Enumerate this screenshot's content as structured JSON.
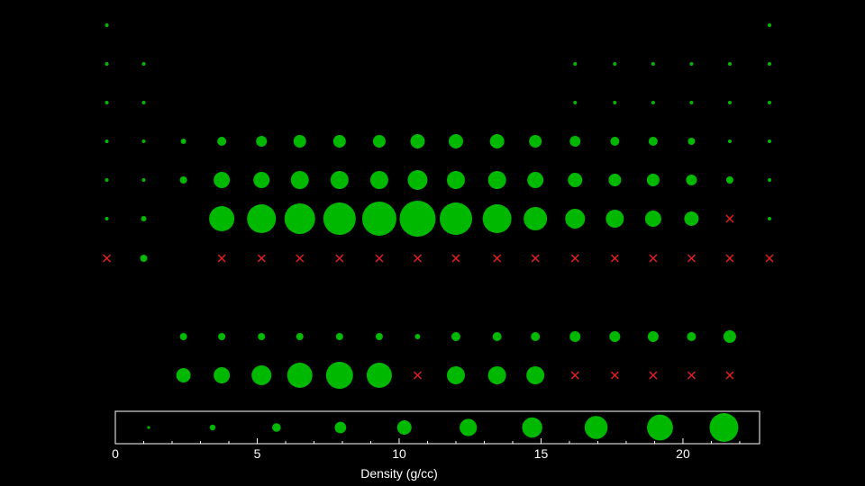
{
  "chart_data": {
    "type": "scatter",
    "xlabel": "Density (g/cc)",
    "xlim": [
      0,
      22.7
    ],
    "xticks": [
      {
        "value": 0,
        "label": "0"
      },
      {
        "value": 5,
        "label": "5"
      },
      {
        "value": 10,
        "label": "10"
      },
      {
        "value": 15,
        "label": "15"
      },
      {
        "value": 20,
        "label": "20"
      }
    ],
    "minor_tick_step": 1,
    "colors": {
      "circle": "#00b800",
      "cross": "#e02020",
      "legend_box": "#ffffff",
      "axis": "#ffffff"
    },
    "columns": [
      -0.3,
      1.0,
      2.4,
      3.75,
      5.15,
      6.5,
      7.9,
      9.3,
      10.65,
      12.0,
      13.45,
      14.8,
      16.2,
      17.6,
      18.95,
      20.3,
      21.65,
      23.05
    ],
    "rows": [
      {
        "points": [
          [
            0,
            "c",
            1
          ],
          [
            17,
            "c",
            1
          ]
        ]
      },
      {
        "points": [
          [
            0,
            "c",
            1
          ],
          [
            1,
            "c",
            1
          ],
          [
            12,
            "c",
            1
          ],
          [
            13,
            "c",
            1
          ],
          [
            14,
            "c",
            1
          ],
          [
            15,
            "c",
            1
          ],
          [
            16,
            "c",
            1
          ],
          [
            17,
            "c",
            1
          ]
        ]
      },
      {
        "points": [
          [
            0,
            "c",
            1
          ],
          [
            1,
            "c",
            1
          ],
          [
            12,
            "c",
            1
          ],
          [
            13,
            "c",
            1
          ],
          [
            14,
            "c",
            1
          ],
          [
            15,
            "c",
            1
          ],
          [
            16,
            "c",
            1
          ],
          [
            17,
            "c",
            1
          ]
        ]
      },
      {
        "points": [
          [
            0,
            "c",
            1
          ],
          [
            1,
            "c",
            1
          ],
          [
            2,
            "c",
            1.5
          ],
          [
            3,
            "c",
            2.5
          ],
          [
            4,
            "c",
            3
          ],
          [
            5,
            "c",
            3.5
          ],
          [
            6,
            "c",
            3.5
          ],
          [
            7,
            "c",
            3.5
          ],
          [
            8,
            "c",
            4
          ],
          [
            9,
            "c",
            4
          ],
          [
            10,
            "c",
            4
          ],
          [
            11,
            "c",
            3.5
          ],
          [
            12,
            "c",
            3
          ],
          [
            13,
            "c",
            2.5
          ],
          [
            14,
            "c",
            2.5
          ],
          [
            15,
            "c",
            2
          ],
          [
            16,
            "c",
            1
          ],
          [
            17,
            "c",
            1
          ]
        ]
      },
      {
        "points": [
          [
            0,
            "c",
            1
          ],
          [
            1,
            "c",
            1
          ],
          [
            2,
            "c",
            2
          ],
          [
            3,
            "c",
            4.5
          ],
          [
            4,
            "c",
            4.5
          ],
          [
            5,
            "c",
            5
          ],
          [
            6,
            "c",
            5
          ],
          [
            7,
            "c",
            5
          ],
          [
            8,
            "c",
            5.5
          ],
          [
            9,
            "c",
            5
          ],
          [
            10,
            "c",
            5
          ],
          [
            11,
            "c",
            4.5
          ],
          [
            12,
            "c",
            4
          ],
          [
            13,
            "c",
            3.5
          ],
          [
            14,
            "c",
            3.5
          ],
          [
            15,
            "c",
            3
          ],
          [
            16,
            "c",
            2
          ],
          [
            17,
            "c",
            1
          ]
        ]
      },
      {
        "points": [
          [
            0,
            "c",
            1
          ],
          [
            1,
            "c",
            1.5
          ],
          [
            3,
            "c",
            7
          ],
          [
            4,
            "c",
            8
          ],
          [
            5,
            "c",
            8.5
          ],
          [
            6,
            "c",
            9
          ],
          [
            7,
            "c",
            9.5
          ],
          [
            8,
            "c",
            10
          ],
          [
            9,
            "c",
            9
          ],
          [
            10,
            "c",
            8
          ],
          [
            11,
            "c",
            6.5
          ],
          [
            12,
            "c",
            5.5
          ],
          [
            13,
            "c",
            5
          ],
          [
            14,
            "c",
            4.5
          ],
          [
            15,
            "c",
            4
          ],
          [
            16,
            "x",
            0
          ],
          [
            17,
            "c",
            1
          ]
        ]
      },
      {
        "points": [
          [
            0,
            "x",
            0
          ],
          [
            1,
            "c",
            2
          ],
          [
            3,
            "x",
            0
          ],
          [
            4,
            "x",
            0
          ],
          [
            5,
            "x",
            0
          ],
          [
            6,
            "x",
            0
          ],
          [
            7,
            "x",
            0
          ],
          [
            8,
            "x",
            0
          ],
          [
            9,
            "x",
            0
          ],
          [
            10,
            "x",
            0
          ],
          [
            11,
            "x",
            0
          ],
          [
            12,
            "x",
            0
          ],
          [
            13,
            "x",
            0
          ],
          [
            14,
            "x",
            0
          ],
          [
            15,
            "x",
            0
          ],
          [
            16,
            "x",
            0
          ],
          [
            17,
            "x",
            0
          ]
        ]
      },
      {
        "points": [
          [
            2,
            "c",
            2
          ],
          [
            3,
            "c",
            2
          ],
          [
            4,
            "c",
            2
          ],
          [
            5,
            "c",
            2
          ],
          [
            6,
            "c",
            2
          ],
          [
            7,
            "c",
            2
          ],
          [
            8,
            "c",
            1.5
          ],
          [
            9,
            "c",
            2.5
          ],
          [
            10,
            "c",
            2.5
          ],
          [
            11,
            "c",
            2.5
          ],
          [
            12,
            "c",
            3
          ],
          [
            13,
            "c",
            3
          ],
          [
            14,
            "c",
            3
          ],
          [
            15,
            "c",
            2.5
          ],
          [
            16,
            "c",
            3.5
          ]
        ]
      },
      {
        "points": [
          [
            2,
            "c",
            4
          ],
          [
            3,
            "c",
            4.5
          ],
          [
            4,
            "c",
            5.5
          ],
          [
            5,
            "c",
            7
          ],
          [
            6,
            "c",
            7.5
          ],
          [
            7,
            "c",
            7
          ],
          [
            8,
            "x",
            0
          ],
          [
            9,
            "c",
            5
          ],
          [
            10,
            "c",
            5
          ],
          [
            11,
            "c",
            5
          ],
          [
            12,
            "x",
            0
          ],
          [
            13,
            "x",
            0
          ],
          [
            14,
            "x",
            0
          ],
          [
            15,
            "x",
            0
          ],
          [
            16,
            "x",
            0
          ]
        ]
      }
    ],
    "legend_levels": [
      1,
      2,
      3,
      4,
      5,
      6,
      7,
      8,
      9,
      10
    ]
  }
}
